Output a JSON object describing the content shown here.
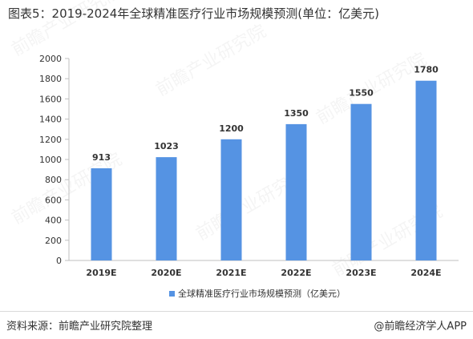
{
  "title": "图表5：2019-2024年全球精准医疗行业市场规模预测(单位：亿美元)",
  "source": "资料来源：前瞻产业研究院整理",
  "brand": "@前瞻经济学人APP",
  "watermark": "前瞻产业研究院",
  "colors": {
    "bar": "#5593e3",
    "axis": "#bfbfbf",
    "text": "#333333"
  },
  "chart_data": {
    "type": "bar",
    "categories": [
      "2019E",
      "2020E",
      "2021E",
      "2022E",
      "2023E",
      "2024E"
    ],
    "series": [
      {
        "name": "全球精准医疗行业市场规模预测（亿美元）",
        "values": [
          913,
          1023,
          1200,
          1350,
          1550,
          1780
        ]
      }
    ],
    "ylim": [
      0,
      2000
    ],
    "yticks": [
      0,
      200,
      400,
      600,
      800,
      1000,
      1200,
      1400,
      1600,
      1800,
      2000
    ],
    "legend": "bottom",
    "grid": false,
    "data_labels": true
  }
}
